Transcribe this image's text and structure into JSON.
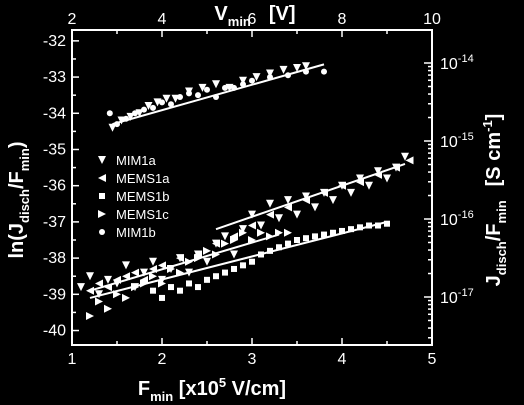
{
  "chart_data": {
    "type": "scatter",
    "bottom_axis": {
      "range": [
        1,
        5
      ],
      "ticks": [
        "1",
        "2",
        "3",
        "4",
        "5"
      ],
      "label_main": "F",
      "label_sub": "min",
      "label_rest": " [x10",
      "label_sup": "5",
      "label_end": " V/cm]"
    },
    "top_axis": {
      "range": [
        2,
        10
      ],
      "ticks": [
        "2",
        "4",
        "6",
        "8",
        "10"
      ],
      "label_main": "V",
      "label_sub": "min",
      "label_rest": "[V]"
    },
    "left_axis": {
      "range": [
        -40.4,
        -31.7
      ],
      "ticks": [
        "-40",
        "-39",
        "-38",
        "-37",
        "-36",
        "-35",
        "-34",
        "-33",
        "-32"
      ],
      "label_a": "ln(J",
      "label_sub1": "disch",
      "label_b": "/F",
      "label_sub2": "min",
      "label_c": ")"
    },
    "right_axis": {
      "scale": "log",
      "ticks": [
        {
          "value": -14,
          "base": "10",
          "exp": "-14"
        },
        {
          "value": -15,
          "base": "10",
          "exp": "-15"
        },
        {
          "value": -16,
          "base": "10",
          "exp": "-16"
        },
        {
          "value": -17,
          "base": "10",
          "exp": "-17"
        }
      ],
      "label_a": "J",
      "label_sub1": "disch",
      "label_b": "/F",
      "label_sub2": "min",
      "label_unit_a": "[S cm",
      "label_unit_sup": "-1",
      "label_unit_b": "]"
    },
    "legend": {
      "placement": "left",
      "entries": [
        {
          "name": "MIM1a",
          "marker": "triangle-down"
        },
        {
          "name": "MEMS1a",
          "marker": "triangle-left"
        },
        {
          "name": "MEMS1b",
          "marker": "square"
        },
        {
          "name": "MEMS1c",
          "marker": "triangle-right"
        },
        {
          "name": "MIM1b",
          "marker": "circle"
        }
      ]
    },
    "series": [
      {
        "name": "MIM1b",
        "marker": "circle",
        "x": [
          1.42,
          1.5,
          1.6,
          1.7,
          1.8,
          1.9,
          2.0,
          2.1,
          2.2,
          2.3,
          2.4,
          2.5,
          2.6,
          2.7,
          2.8,
          2.9,
          3.0,
          3.2,
          3.4,
          3.6,
          3.8
        ],
        "y": [
          -34.0,
          -34.3,
          -34.15,
          -34.0,
          -33.9,
          -33.85,
          -33.7,
          -33.75,
          -33.55,
          -33.45,
          -33.5,
          -33.35,
          -33.55,
          -33.3,
          -33.3,
          -33.2,
          -33.1,
          -33.0,
          -32.95,
          -32.85,
          -32.85
        ]
      },
      {
        "name": "MIM1a",
        "marker": "triangle-down",
        "x": [
          1.45,
          1.55,
          1.65,
          1.75,
          1.85,
          1.95,
          2.05,
          2.15,
          2.3,
          2.45,
          2.6,
          2.75,
          2.9,
          3.05,
          3.2,
          3.35,
          3.5,
          3.6
        ],
        "y": [
          -34.4,
          -34.2,
          -34.1,
          -34.0,
          -33.8,
          -33.7,
          -33.6,
          -33.6,
          -33.4,
          -33.3,
          -33.2,
          -33.3,
          -33.1,
          -33.0,
          -32.9,
          -32.8,
          -32.75,
          -32.7
        ]
      },
      {
        "name": "MIM1a",
        "marker": "triangle-down",
        "x": [
          1.1,
          1.2,
          1.3,
          1.4,
          1.5,
          1.6,
          1.7,
          1.8,
          1.9,
          2.0,
          2.1,
          2.2,
          2.3,
          2.4,
          2.5,
          2.6,
          2.7,
          2.8,
          2.9,
          3.0,
          3.1,
          3.2,
          3.3,
          3.4,
          3.5,
          3.6,
          3.7,
          3.8,
          3.9,
          4.0,
          4.1,
          4.2,
          4.3,
          4.4,
          4.5,
          4.6,
          4.7
        ],
        "y": [
          -38.8,
          -38.5,
          -39.0,
          -38.6,
          -38.7,
          -38.2,
          -38.8,
          -38.4,
          -38.1,
          -38.6,
          -38.3,
          -38.0,
          -38.4,
          -37.9,
          -38.1,
          -37.6,
          -37.4,
          -37.9,
          -37.2,
          -36.8,
          -37.1,
          -36.5,
          -36.9,
          -36.4,
          -36.8,
          -36.3,
          -36.6,
          -36.2,
          -36.4,
          -36.0,
          -36.2,
          -35.8,
          -36.0,
          -35.6,
          -35.8,
          -35.5,
          -35.2
        ]
      },
      {
        "name": "MEMS1a",
        "marker": "triangle-left",
        "x": [
          1.2,
          1.3,
          1.4,
          1.5,
          1.6,
          1.7,
          1.8,
          1.9,
          2.0,
          2.2,
          2.4,
          2.6,
          2.8,
          3.0,
          3.2,
          3.4,
          3.6,
          3.8,
          4.0,
          4.2,
          4.4,
          4.6,
          4.75
        ],
        "y": [
          -38.9,
          -38.7,
          -38.8,
          -38.6,
          -38.5,
          -38.4,
          -38.6,
          -38.3,
          -38.2,
          -38.0,
          -37.9,
          -37.6,
          -37.4,
          -37.1,
          -36.8,
          -36.6,
          -36.4,
          -36.2,
          -36.0,
          -35.9,
          -35.7,
          -35.5,
          -35.3
        ]
      },
      {
        "name": "MEMS1b",
        "marker": "square",
        "x": [
          1.9,
          2.0,
          2.1,
          2.2,
          2.3,
          2.4,
          2.5,
          2.6,
          2.7,
          2.8,
          2.9,
          3.0,
          3.1,
          3.2,
          3.3,
          3.4,
          3.5,
          3.6,
          3.7,
          3.8,
          3.9,
          4.0,
          4.1,
          4.2,
          4.3,
          4.4,
          4.5
        ],
        "y": [
          -38.9,
          -39.1,
          -38.8,
          -38.9,
          -38.7,
          -38.8,
          -38.6,
          -38.5,
          -38.4,
          -38.3,
          -38.2,
          -38.1,
          -37.9,
          -37.8,
          -37.7,
          -37.6,
          -37.5,
          -37.45,
          -37.4,
          -37.35,
          -37.3,
          -37.25,
          -37.2,
          -37.15,
          -37.1,
          -37.1,
          -37.05
        ]
      },
      {
        "name": "MEMS1c",
        "marker": "triangle-right",
        "x": [
          1.2,
          1.3,
          1.4,
          1.5,
          1.6,
          1.7,
          1.8,
          1.9,
          2.0,
          2.1,
          2.2,
          2.3,
          2.4,
          2.5,
          2.6,
          2.7,
          2.8,
          2.9,
          3.0,
          3.1,
          3.2,
          3.3,
          3.4
        ],
        "y": [
          -39.6,
          -39.2,
          -39.4,
          -39.0,
          -39.1,
          -38.8,
          -38.7,
          -38.5,
          -38.7,
          -38.3,
          -38.4,
          -38.1,
          -38.0,
          -37.8,
          -37.9,
          -37.6,
          -37.5,
          -37.3,
          -37.5,
          -37.3,
          -37.4,
          -37.3,
          -37.3
        ]
      }
    ],
    "fit_lines": [
      {
        "x": [
          1.45,
          3.8
        ],
        "y": [
          -34.3,
          -32.65
        ]
      },
      {
        "x": [
          1.2,
          3.3
        ],
        "y": [
          -38.9,
          -37.35
        ]
      },
      {
        "x": [
          1.2,
          4.5
        ],
        "y": [
          -39.1,
          -37.0
        ]
      },
      {
        "x": [
          2.6,
          4.7
        ],
        "y": [
          -37.2,
          -35.4
        ]
      }
    ]
  }
}
